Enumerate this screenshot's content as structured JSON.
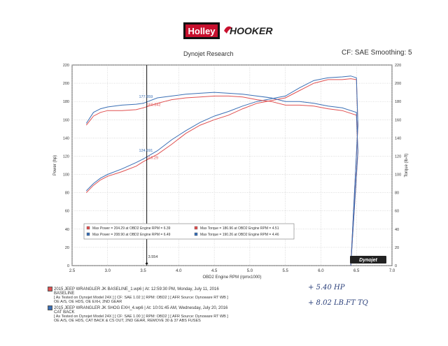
{
  "header": {
    "brand_left": "Holley",
    "brand_right": "HOOKER",
    "center_title": "Dynojet Research",
    "right_info": "CF: SAE Smoothing: 5"
  },
  "chart_data": {
    "type": "line",
    "xlabel": "OBD2 Engine RPM (rpmx1000)",
    "ylabel_left": "Power (hp)",
    "ylabel_right": "Torque (lb-ft)",
    "xlim": [
      2.5,
      7.0
    ],
    "ylim": [
      0,
      220
    ],
    "x_ticks": [
      "2.5",
      "3.0",
      "3.5",
      "4.0",
      "4.5",
      "5.0",
      "5.5",
      "6.0",
      "6.5",
      "7.0"
    ],
    "y_ticks": [
      "0",
      "20",
      "40",
      "60",
      "80",
      "100",
      "120",
      "140",
      "160",
      "180",
      "200",
      "220"
    ],
    "series": [
      {
        "name": "Baseline Power",
        "color": "#e05050",
        "x": [
          2.7,
          2.8,
          2.9,
          3.0,
          3.2,
          3.4,
          3.5,
          3.7,
          3.9,
          4.1,
          4.3,
          4.5,
          4.7,
          4.9,
          5.1,
          5.3,
          5.5,
          5.7,
          5.9,
          6.1,
          6.3,
          6.42,
          6.5
        ],
        "y": [
          80,
          88,
          94,
          98,
          103,
          109,
          114,
          122,
          133,
          145,
          154,
          160,
          165,
          172,
          178,
          181,
          184,
          192,
          200,
          204,
          204,
          205,
          204
        ]
      },
      {
        "name": "Cat Back Power",
        "color": "#3a6fb5",
        "x": [
          2.7,
          2.8,
          2.9,
          3.0,
          3.2,
          3.4,
          3.5,
          3.7,
          3.9,
          4.1,
          4.3,
          4.5,
          4.7,
          4.9,
          5.1,
          5.3,
          5.5,
          5.7,
          5.9,
          6.1,
          6.3,
          6.42,
          6.5
        ],
        "y": [
          82,
          90,
          96,
          100,
          106,
          113,
          117,
          126,
          138,
          148,
          157,
          164,
          169,
          175,
          180,
          183,
          186,
          195,
          203,
          206,
          207,
          208,
          206
        ]
      },
      {
        "name": "Baseline Torque",
        "color": "#e05050",
        "x": [
          2.7,
          2.8,
          2.9,
          3.0,
          3.2,
          3.4,
          3.5,
          3.7,
          3.9,
          4.1,
          4.3,
          4.5,
          4.7,
          4.9,
          5.1,
          5.3,
          5.5,
          5.7,
          5.9,
          6.1,
          6.3,
          6.5
        ],
        "y": [
          154,
          164,
          168,
          170,
          170,
          171,
          173,
          178,
          182,
          184,
          185,
          186,
          186,
          185,
          182,
          180,
          176,
          176,
          175,
          172,
          170,
          165
        ]
      },
      {
        "name": "Cat Back Torque",
        "color": "#3a6fb5",
        "x": [
          2.7,
          2.8,
          2.9,
          3.0,
          3.2,
          3.4,
          3.5,
          3.7,
          3.9,
          4.1,
          4.3,
          4.5,
          4.7,
          4.9,
          5.1,
          5.3,
          5.5,
          5.7,
          5.9,
          6.1,
          6.3,
          6.5
        ],
        "y": [
          156,
          168,
          172,
          174,
          176,
          177,
          178,
          184,
          186,
          188,
          189,
          190,
          189,
          188,
          186,
          184,
          180,
          180,
          178,
          175,
          173,
          168
        ]
      }
    ],
    "cursor": {
      "x": 3.55,
      "label_x": "3.554"
    },
    "cursor_labels": [
      {
        "text": "177.859",
        "x": 3.44,
        "y": 184,
        "color": "#3a6fb5"
      },
      {
        "text": "169.842",
        "x": 3.55,
        "y": 175,
        "color": "#e05050"
      },
      {
        "text": "124.691",
        "x": 3.44,
        "y": 125,
        "color": "#3a6fb5"
      },
      {
        "text": "116.29",
        "x": 3.55,
        "y": 117,
        "color": "#e05050"
      }
    ],
    "legend": {
      "placement": "bottom-left",
      "rows": [
        {
          "color": "#e05050",
          "power": "Max Power = 204.29 at OBD2 Engine RPM = 6.39",
          "torque": "Max Torque = 186.96 at OBD2 Engine RPM = 4.51"
        },
        {
          "color": "#3a6fb5",
          "power": "Max Power = 208.90 at OBD2 Engine RPM = 6.49",
          "torque": "Max Torque = 190.26 at OBD2 Engine RPM = 4.46"
        }
      ]
    }
  },
  "runs": [
    {
      "color": "#e05050",
      "line1": "2015 JEEP WRANGLER JK BASELINE_1.wp6 | At: 12:59:30 PM, Monday, July 11, 2016",
      "line2": "BASELINE",
      "line3": "[ As Tested on Dynojet Model 24X ]   [ CF: SAE 1.02 ]   [ RPM: OBD2 ]   [ AFR Source: Dynoware RT WB ]",
      "line4": "OE A/S, OE HDS, OE EXH, 2ND GEAR"
    },
    {
      "color": "#3a6fb5",
      "line1": "2015 JEEP WRANGLER JK SHOG EXH_4.wp6 | At: 10:01:45 AM, Wednesday, July 20, 2016",
      "line2": "CAT BACK",
      "line3": "[ As Tested on Dynojet Model 24X ]   [ CF: SAE 1.00 ]   [ RPM: OBD2 ]   [ AFR Source: Dynoware RT WB ]",
      "line4": "OE A/S, OE HDS, CAT BACK & CS OUT, 2ND GEAR, REMOVE 30 & 37 ABS FUSES"
    }
  ],
  "annotations": {
    "hp_note": "+ 5.40  HP",
    "tq_note": "+ 8.02  LB.FT  TQ"
  },
  "dynojet_badge": "Dynojet"
}
